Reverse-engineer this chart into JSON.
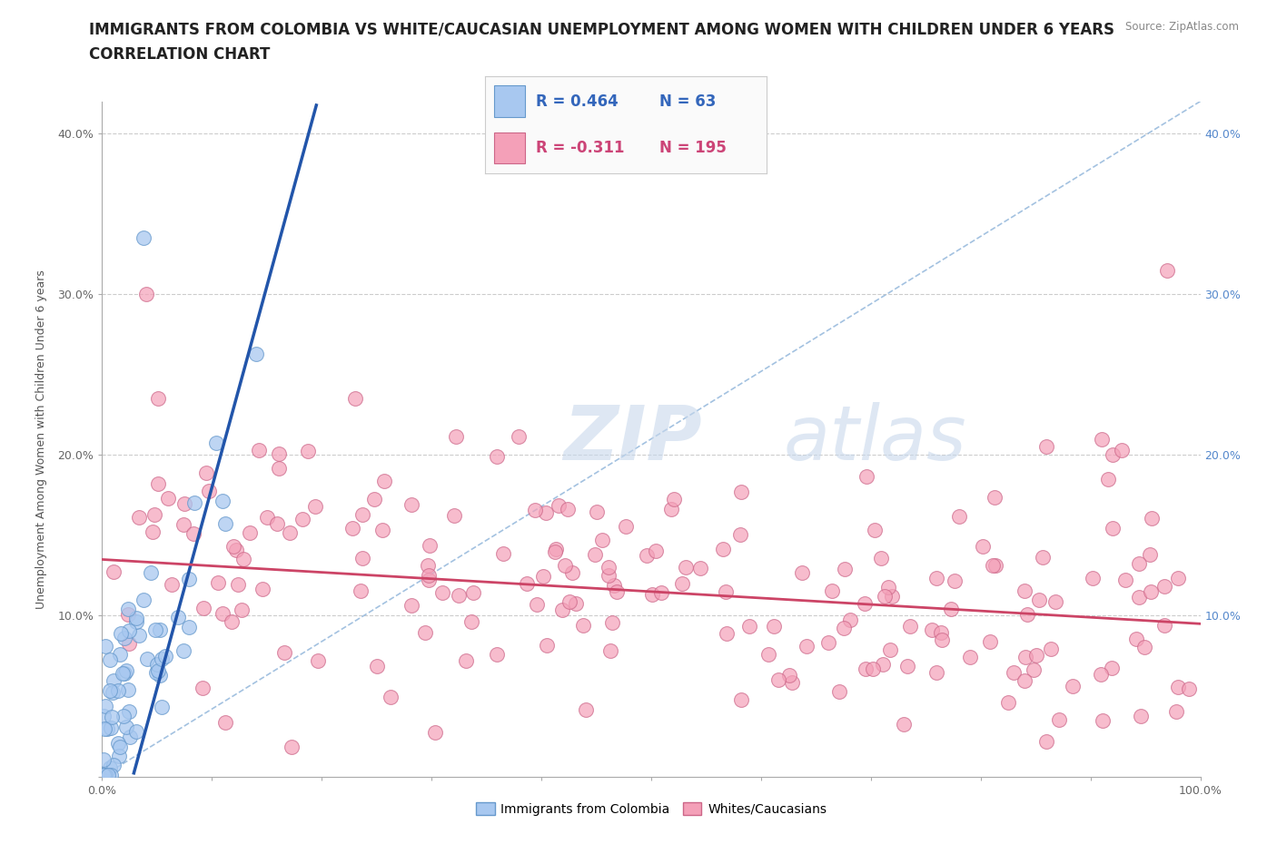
{
  "title_line1": "IMMIGRANTS FROM COLOMBIA VS WHITE/CAUCASIAN UNEMPLOYMENT AMONG WOMEN WITH CHILDREN UNDER 6 YEARS",
  "title_line2": "CORRELATION CHART",
  "source_text": "Source: ZipAtlas.com",
  "ylabel": "Unemployment Among Women with Children Under 6 years",
  "xlim": [
    0,
    1.0
  ],
  "ylim": [
    0,
    0.42
  ],
  "xtick_positions": [
    0,
    0.1,
    0.2,
    0.3,
    0.4,
    0.5,
    0.6,
    0.7,
    0.8,
    0.9,
    1.0
  ],
  "xtick_labels": [
    "0.0%",
    "",
    "",
    "",
    "",
    "",
    "",
    "",
    "",
    "",
    "100.0%"
  ],
  "ytick_positions": [
    0,
    0.1,
    0.2,
    0.3,
    0.4
  ],
  "ytick_labels_left": [
    "",
    "10.0%",
    "20.0%",
    "30.0%",
    "40.0%"
  ],
  "ytick_labels_right": [
    "",
    "10.0%",
    "20.0%",
    "30.0%",
    "40.0%"
  ],
  "colombia_fill": "#A8C8F0",
  "colombia_edge": "#6699CC",
  "white_fill": "#F4A0B8",
  "white_edge": "#CC6688",
  "trend_colombia_color": "#2255AA",
  "trend_white_color": "#CC4466",
  "ref_line_color": "#99BBDD",
  "watermark_zip": "ZIP",
  "watermark_atlas": "atlas",
  "watermark_color_zip": "#C8D8EC",
  "watermark_color_atlas": "#C8D8EC",
  "R_colombia": 0.464,
  "N_colombia": 63,
  "R_white": -0.311,
  "N_white": 195,
  "title_fontsize": 12,
  "axis_label_fontsize": 9,
  "tick_fontsize": 9,
  "background_color": "#FFFFFF",
  "grid_color": "#CCCCCC",
  "legend_text_color_colombia": "#3366BB",
  "legend_text_color_white": "#CC4477"
}
